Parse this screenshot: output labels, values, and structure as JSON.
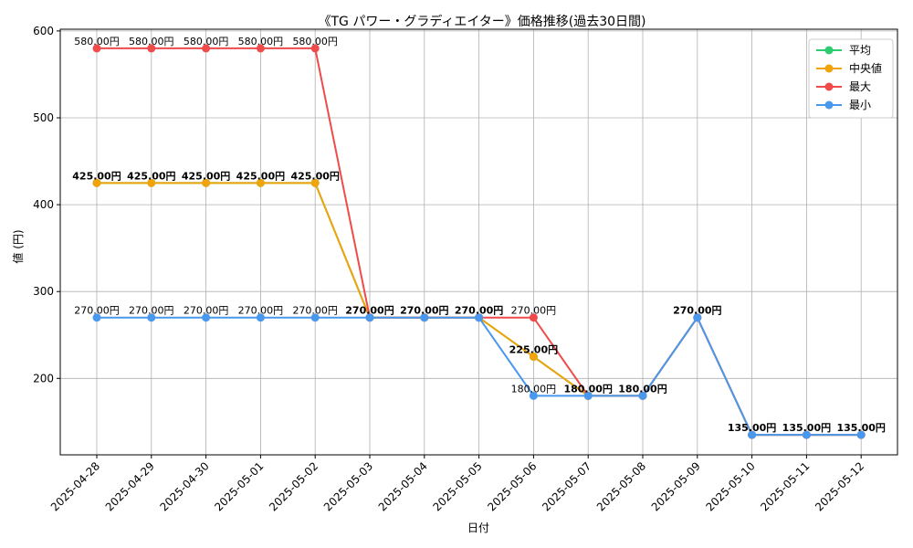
{
  "chart_data": {
    "type": "line",
    "title": "《TG パワー・グラディエイター》価格推移(過去30日間)",
    "xlabel": "日付",
    "ylabel": "値 (円)",
    "ylim": [
      112,
      602
    ],
    "yticks": [
      200,
      300,
      400,
      500,
      600
    ],
    "grid": true,
    "legend_position": "top-right",
    "categories": [
      "2025-04-28",
      "2025-04-29",
      "2025-04-30",
      "2025-05-01",
      "2025-05-02",
      "2025-05-03",
      "2025-05-04",
      "2025-05-05",
      "2025-05-06",
      "2025-05-07",
      "2025-05-08",
      "2025-05-09",
      "2025-05-10",
      "2025-05-11",
      "2025-05-12"
    ],
    "series": [
      {
        "name": "平均",
        "color": "#2ecc71",
        "values": [
          425,
          425,
          425,
          425,
          425,
          270,
          270,
          270,
          225,
          180,
          180,
          270,
          135,
          135,
          135
        ]
      },
      {
        "name": "中央値",
        "color": "#f0a30a",
        "values": [
          425,
          425,
          425,
          425,
          425,
          270,
          270,
          270,
          225,
          180,
          180,
          270,
          135,
          135,
          135
        ]
      },
      {
        "name": "最大",
        "color": "#ef4b4b",
        "values": [
          580,
          580,
          580,
          580,
          580,
          270,
          270,
          270,
          270,
          180,
          180,
          270,
          135,
          135,
          135
        ]
      },
      {
        "name": "最小",
        "color": "#4a98ee",
        "values": [
          270,
          270,
          270,
          270,
          270,
          270,
          270,
          270,
          180,
          180,
          180,
          270,
          135,
          135,
          135
        ]
      }
    ],
    "data_labels": [
      {
        "x": 0,
        "value": 580,
        "text": "580.00円",
        "bold": false
      },
      {
        "x": 1,
        "value": 580,
        "text": "580.00円",
        "bold": false
      },
      {
        "x": 2,
        "value": 580,
        "text": "580.00円",
        "bold": false
      },
      {
        "x": 3,
        "value": 580,
        "text": "580.00円",
        "bold": false
      },
      {
        "x": 4,
        "value": 580,
        "text": "580.00円",
        "bold": false
      },
      {
        "x": 0,
        "value": 425,
        "text": "425.00円",
        "bold": true
      },
      {
        "x": 1,
        "value": 425,
        "text": "425.00円",
        "bold": true
      },
      {
        "x": 2,
        "value": 425,
        "text": "425.00円",
        "bold": true
      },
      {
        "x": 3,
        "value": 425,
        "text": "425.00円",
        "bold": true
      },
      {
        "x": 4,
        "value": 425,
        "text": "425.00円",
        "bold": true
      },
      {
        "x": 0,
        "value": 270,
        "text": "270.00円",
        "bold": false
      },
      {
        "x": 1,
        "value": 270,
        "text": "270.00円",
        "bold": false
      },
      {
        "x": 2,
        "value": 270,
        "text": "270.00円",
        "bold": false
      },
      {
        "x": 3,
        "value": 270,
        "text": "270.00円",
        "bold": false
      },
      {
        "x": 4,
        "value": 270,
        "text": "270.00円",
        "bold": false
      },
      {
        "x": 5,
        "value": 270,
        "text": "270.00円",
        "bold": true
      },
      {
        "x": 6,
        "value": 270,
        "text": "270.00円",
        "bold": true
      },
      {
        "x": 7,
        "value": 270,
        "text": "270.00円",
        "bold": true
      },
      {
        "x": 8,
        "value": 270,
        "text": "270.00円",
        "bold": false
      },
      {
        "x": 8,
        "value": 225,
        "text": "225.00円",
        "bold": true
      },
      {
        "x": 8,
        "value": 180,
        "text": "180.00円",
        "bold": false
      },
      {
        "x": 9,
        "value": 180,
        "text": "180.00円",
        "bold": true
      },
      {
        "x": 10,
        "value": 180,
        "text": "180.00円",
        "bold": true
      },
      {
        "x": 11,
        "value": 270,
        "text": "270.00円",
        "bold": true
      },
      {
        "x": 12,
        "value": 135,
        "text": "135.00円",
        "bold": true
      },
      {
        "x": 13,
        "value": 135,
        "text": "135.00円",
        "bold": true
      },
      {
        "x": 14,
        "value": 135,
        "text": "135.00円",
        "bold": true
      }
    ]
  }
}
